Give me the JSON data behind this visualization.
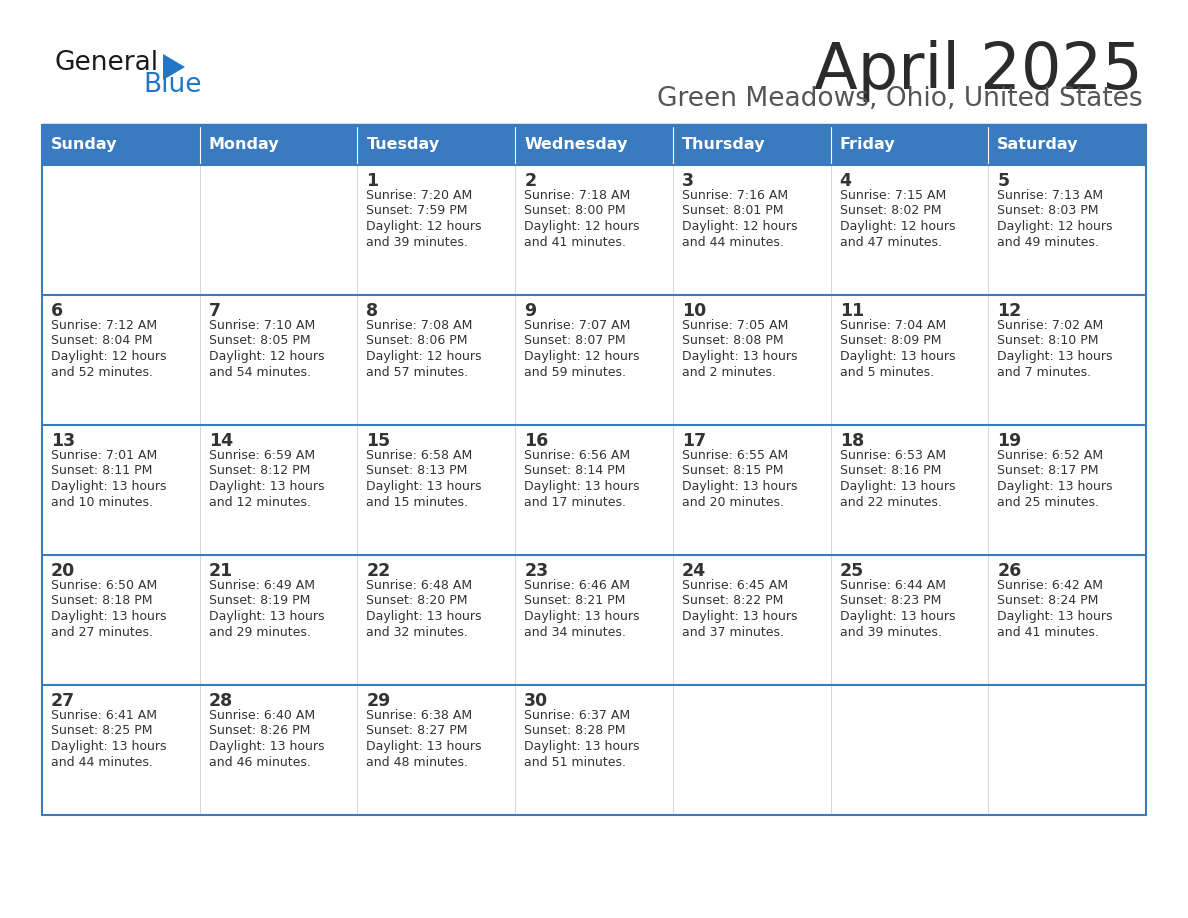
{
  "title": "April 2025",
  "subtitle": "Green Meadows, Ohio, United States",
  "header_color": "#3a7abf",
  "header_text_color": "#ffffff",
  "cell_bg_white": "#ffffff",
  "cell_bg_light": "#f2f2f2",
  "row_divider_color": "#3a7abf",
  "border_color": "#3a7abf",
  "text_color": "#333333",
  "logo_black": "#1a1a1a",
  "logo_blue": "#2176c7",
  "days_of_week": [
    "Sunday",
    "Monday",
    "Tuesday",
    "Wednesday",
    "Thursday",
    "Friday",
    "Saturday"
  ],
  "weeks": [
    [
      {
        "day": "",
        "info": ""
      },
      {
        "day": "",
        "info": ""
      },
      {
        "day": "1",
        "info": "Sunrise: 7:20 AM\nSunset: 7:59 PM\nDaylight: 12 hours\nand 39 minutes."
      },
      {
        "day": "2",
        "info": "Sunrise: 7:18 AM\nSunset: 8:00 PM\nDaylight: 12 hours\nand 41 minutes."
      },
      {
        "day": "3",
        "info": "Sunrise: 7:16 AM\nSunset: 8:01 PM\nDaylight: 12 hours\nand 44 minutes."
      },
      {
        "day": "4",
        "info": "Sunrise: 7:15 AM\nSunset: 8:02 PM\nDaylight: 12 hours\nand 47 minutes."
      },
      {
        "day": "5",
        "info": "Sunrise: 7:13 AM\nSunset: 8:03 PM\nDaylight: 12 hours\nand 49 minutes."
      }
    ],
    [
      {
        "day": "6",
        "info": "Sunrise: 7:12 AM\nSunset: 8:04 PM\nDaylight: 12 hours\nand 52 minutes."
      },
      {
        "day": "7",
        "info": "Sunrise: 7:10 AM\nSunset: 8:05 PM\nDaylight: 12 hours\nand 54 minutes."
      },
      {
        "day": "8",
        "info": "Sunrise: 7:08 AM\nSunset: 8:06 PM\nDaylight: 12 hours\nand 57 minutes."
      },
      {
        "day": "9",
        "info": "Sunrise: 7:07 AM\nSunset: 8:07 PM\nDaylight: 12 hours\nand 59 minutes."
      },
      {
        "day": "10",
        "info": "Sunrise: 7:05 AM\nSunset: 8:08 PM\nDaylight: 13 hours\nand 2 minutes."
      },
      {
        "day": "11",
        "info": "Sunrise: 7:04 AM\nSunset: 8:09 PM\nDaylight: 13 hours\nand 5 minutes."
      },
      {
        "day": "12",
        "info": "Sunrise: 7:02 AM\nSunset: 8:10 PM\nDaylight: 13 hours\nand 7 minutes."
      }
    ],
    [
      {
        "day": "13",
        "info": "Sunrise: 7:01 AM\nSunset: 8:11 PM\nDaylight: 13 hours\nand 10 minutes."
      },
      {
        "day": "14",
        "info": "Sunrise: 6:59 AM\nSunset: 8:12 PM\nDaylight: 13 hours\nand 12 minutes."
      },
      {
        "day": "15",
        "info": "Sunrise: 6:58 AM\nSunset: 8:13 PM\nDaylight: 13 hours\nand 15 minutes."
      },
      {
        "day": "16",
        "info": "Sunrise: 6:56 AM\nSunset: 8:14 PM\nDaylight: 13 hours\nand 17 minutes."
      },
      {
        "day": "17",
        "info": "Sunrise: 6:55 AM\nSunset: 8:15 PM\nDaylight: 13 hours\nand 20 minutes."
      },
      {
        "day": "18",
        "info": "Sunrise: 6:53 AM\nSunset: 8:16 PM\nDaylight: 13 hours\nand 22 minutes."
      },
      {
        "day": "19",
        "info": "Sunrise: 6:52 AM\nSunset: 8:17 PM\nDaylight: 13 hours\nand 25 minutes."
      }
    ],
    [
      {
        "day": "20",
        "info": "Sunrise: 6:50 AM\nSunset: 8:18 PM\nDaylight: 13 hours\nand 27 minutes."
      },
      {
        "day": "21",
        "info": "Sunrise: 6:49 AM\nSunset: 8:19 PM\nDaylight: 13 hours\nand 29 minutes."
      },
      {
        "day": "22",
        "info": "Sunrise: 6:48 AM\nSunset: 8:20 PM\nDaylight: 13 hours\nand 32 minutes."
      },
      {
        "day": "23",
        "info": "Sunrise: 6:46 AM\nSunset: 8:21 PM\nDaylight: 13 hours\nand 34 minutes."
      },
      {
        "day": "24",
        "info": "Sunrise: 6:45 AM\nSunset: 8:22 PM\nDaylight: 13 hours\nand 37 minutes."
      },
      {
        "day": "25",
        "info": "Sunrise: 6:44 AM\nSunset: 8:23 PM\nDaylight: 13 hours\nand 39 minutes."
      },
      {
        "day": "26",
        "info": "Sunrise: 6:42 AM\nSunset: 8:24 PM\nDaylight: 13 hours\nand 41 minutes."
      }
    ],
    [
      {
        "day": "27",
        "info": "Sunrise: 6:41 AM\nSunset: 8:25 PM\nDaylight: 13 hours\nand 44 minutes."
      },
      {
        "day": "28",
        "info": "Sunrise: 6:40 AM\nSunset: 8:26 PM\nDaylight: 13 hours\nand 46 minutes."
      },
      {
        "day": "29",
        "info": "Sunrise: 6:38 AM\nSunset: 8:27 PM\nDaylight: 13 hours\nand 48 minutes."
      },
      {
        "day": "30",
        "info": "Sunrise: 6:37 AM\nSunset: 8:28 PM\nDaylight: 13 hours\nand 51 minutes."
      },
      {
        "day": "",
        "info": ""
      },
      {
        "day": "",
        "info": ""
      },
      {
        "day": "",
        "info": ""
      }
    ]
  ]
}
